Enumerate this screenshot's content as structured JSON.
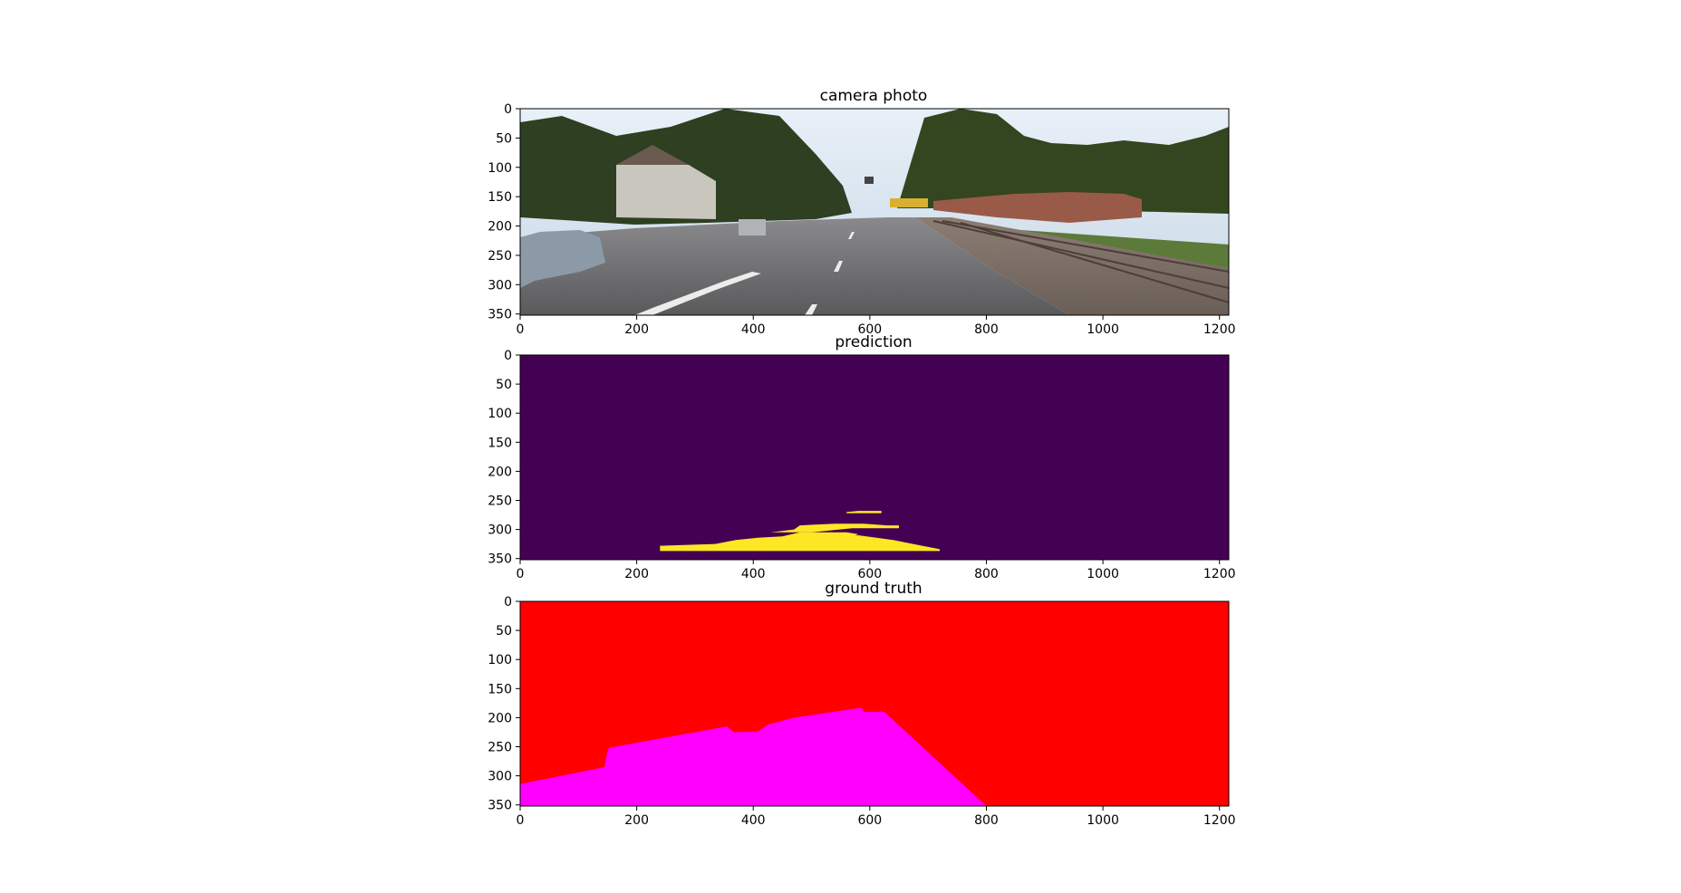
{
  "chart_data": [
    {
      "type": "image",
      "title": "camera photo",
      "xlim": [
        0,
        1216
      ],
      "ylim": [
        352,
        0
      ],
      "xticks": [
        0,
        200,
        400,
        600,
        800,
        1000,
        1200
      ],
      "yticks": [
        0,
        50,
        100,
        150,
        200,
        250,
        300,
        350
      ],
      "content": "street scene photograph",
      "colors": {
        "sky": "#d8e6f2",
        "trees": "#2e3f22",
        "road": "#6e6e6e",
        "grass": "#5c7a3a",
        "wall": "#9a5a48",
        "tracks": "#7a6e66",
        "tram": "#d8b030"
      }
    },
    {
      "type": "heatmap",
      "title": "prediction",
      "xlim": [
        0,
        1216
      ],
      "ylim": [
        352,
        0
      ],
      "xticks": [
        0,
        200,
        400,
        600,
        800,
        1000,
        1200
      ],
      "yticks": [
        0,
        50,
        100,
        150,
        200,
        250,
        300,
        350
      ],
      "colors": {
        "background": "#440154",
        "class": "#fde725"
      },
      "regions": [
        {
          "label": "class",
          "polygon": [
            [
              240,
              328
            ],
            [
              430,
              322
            ],
            [
              540,
              315
            ],
            [
              580,
              310
            ],
            [
              640,
              318
            ],
            [
              690,
              328
            ],
            [
              720,
              334
            ],
            [
              720,
              337
            ],
            [
              240,
              337
            ]
          ]
        },
        {
          "label": "class",
          "polygon": [
            [
              330,
              326
            ],
            [
              370,
              318
            ],
            [
              410,
              314
            ],
            [
              450,
              312
            ],
            [
              480,
              305
            ],
            [
              560,
              305
            ],
            [
              580,
              308
            ],
            [
              560,
              318
            ],
            [
              470,
              322
            ],
            [
              400,
              326
            ]
          ]
        },
        {
          "label": "class",
          "polygon": [
            [
              430,
              305
            ],
            [
              470,
              300
            ],
            [
              480,
              293
            ],
            [
              540,
              290
            ],
            [
              590,
              290
            ],
            [
              630,
              293
            ],
            [
              650,
              293
            ],
            [
              650,
              298
            ],
            [
              570,
              298
            ],
            [
              500,
              305
            ]
          ]
        },
        {
          "label": "class",
          "polygon": [
            [
              560,
              270
            ],
            [
              580,
              268
            ],
            [
              620,
              268
            ],
            [
              620,
              272
            ],
            [
              560,
              272
            ]
          ]
        }
      ]
    },
    {
      "type": "heatmap",
      "title": "ground truth",
      "xlim": [
        0,
        1216
      ],
      "ylim": [
        352,
        0
      ],
      "xticks": [
        0,
        200,
        400,
        600,
        800,
        1000,
        1200
      ],
      "yticks": [
        0,
        50,
        100,
        150,
        200,
        250,
        300,
        350
      ],
      "colors": {
        "background": "#ff0000",
        "road": "#ff00ff"
      },
      "regions": [
        {
          "label": "road",
          "polygon": [
            [
              0,
              314
            ],
            [
              145,
              285
            ],
            [
              148,
              265
            ],
            [
              152,
              252
            ],
            [
              355,
              215
            ],
            [
              367,
              225
            ],
            [
              408,
              224
            ],
            [
              425,
              212
            ],
            [
              470,
              200
            ],
            [
              585,
              183
            ],
            [
              590,
              190
            ],
            [
              625,
              190
            ],
            [
              800,
              352
            ],
            [
              0,
              352
            ]
          ]
        }
      ]
    }
  ]
}
